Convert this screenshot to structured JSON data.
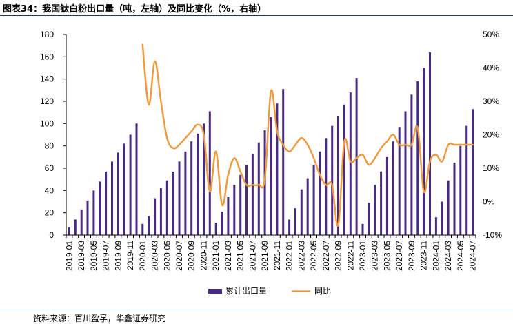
{
  "title": "图表34：我国钛白粉出口量（吨，左轴）及同比变化（%，右轴）",
  "source": "资料来源：百川盈孚，华鑫证券研究",
  "colors": {
    "bar": "#4b2a87",
    "line": "#f19a3e",
    "axis": "#000000",
    "rule": "#1f3a6a"
  },
  "chart_data": {
    "type": "bar",
    "categories": [
      "2019-01",
      "2019-02",
      "2019-03",
      "2019-04",
      "2019-05",
      "2019-06",
      "2019-07",
      "2019-08",
      "2019-09",
      "2019-10",
      "2019-11",
      "2019-12",
      "2020-01",
      "2020-02",
      "2020-03",
      "2020-04",
      "2020-05",
      "2020-06",
      "2020-07",
      "2020-08",
      "2020-09",
      "2020-10",
      "2020-11",
      "2020-12",
      "2021-01",
      "2021-02",
      "2021-03",
      "2021-04",
      "2021-05",
      "2021-06",
      "2021-07",
      "2021-08",
      "2021-09",
      "2021-10",
      "2021-11",
      "2021-12",
      "2022-01",
      "2022-02",
      "2022-03",
      "2022-04",
      "2022-05",
      "2022-06",
      "2022-07",
      "2022-08",
      "2022-09",
      "2022-10",
      "2022-11",
      "2022-12",
      "2023-01",
      "2023-02",
      "2023-03",
      "2023-04",
      "2023-05",
      "2023-06",
      "2023-07",
      "2023-08",
      "2023-09",
      "2023-10",
      "2023-11",
      "2023-12",
      "2024-01",
      "2024-02",
      "2024-03",
      "2024-04",
      "2024-05",
      "2024-06",
      "2024-07"
    ],
    "x_tick_labels": [
      "2019-01",
      "2019-03",
      "2019-05",
      "2019-07",
      "2019-09",
      "2019-11",
      "2020-01",
      "2020-03",
      "2020-05",
      "2020-07",
      "2020-09",
      "2020-11",
      "2021-01",
      "2021-03",
      "2021-05",
      "2021-07",
      "2021-09",
      "2021-11",
      "2022-01",
      "2022-03",
      "2022-05",
      "2022-07",
      "2022-09",
      "2022-11",
      "2023-01",
      "2023-03",
      "2023-05",
      "2023-07",
      "2023-09",
      "2023-11",
      "2024-01",
      "2024-03",
      "2024-05",
      "2024-07"
    ],
    "series": [
      {
        "name": "累计出口量",
        "type": "bar",
        "axis": "left",
        "values": [
          7,
          14,
          23,
          31,
          40,
          48,
          57,
          66,
          74,
          82,
          90,
          100,
          10,
          17,
          33,
          42,
          49,
          57,
          66,
          75,
          84,
          91,
          100,
          111,
          11,
          21,
          34,
          45,
          54,
          63,
          73,
          83,
          94,
          106,
          118,
          131,
          14,
          24,
          41,
          51,
          63,
          75,
          87,
          98,
          107,
          117,
          128,
          141,
          10,
          29,
          45,
          57,
          70,
          84,
          97,
          111,
          126,
          138,
          150,
          164,
          16,
          30,
          49,
          65,
          80,
          98,
          113
        ]
      },
      {
        "name": "同比",
        "type": "line",
        "axis": "right",
        "values": [
          null,
          null,
          null,
          null,
          null,
          null,
          null,
          null,
          null,
          null,
          null,
          null,
          47,
          29,
          42,
          30,
          19,
          16,
          17,
          19,
          21,
          23,
          20,
          3,
          15,
          -1,
          8,
          13,
          9,
          5,
          5,
          5,
          7,
          33,
          21,
          17,
          15,
          17,
          19,
          17,
          13,
          8,
          5,
          5,
          -7,
          18,
          12,
          13,
          14,
          11,
          13,
          16,
          18,
          20,
          17,
          17,
          17,
          22,
          3,
          12,
          14,
          12,
          17,
          17,
          17,
          17,
          17
        ]
      }
    ],
    "y_left": {
      "min": 0,
      "max": 180,
      "ticks": [
        0,
        20,
        40,
        60,
        80,
        100,
        120,
        140,
        160,
        180
      ]
    },
    "y_right": {
      "min": -10,
      "max": 50,
      "ticks": [
        "-10%",
        "0%",
        "10%",
        "20%",
        "30%",
        "40%",
        "50%"
      ]
    },
    "legend": {
      "position": "bottom",
      "items": [
        "累计出口量",
        "同比"
      ]
    },
    "grid": false
  }
}
